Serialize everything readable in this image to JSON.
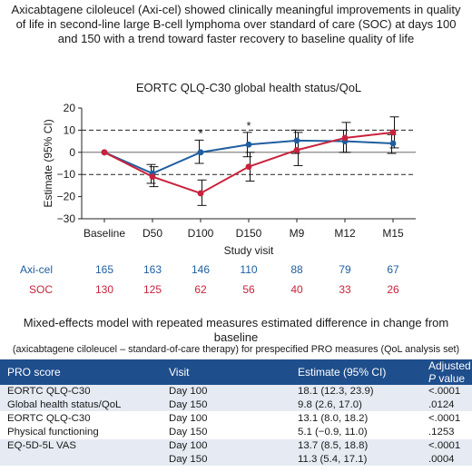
{
  "headline": "Axicabtagene ciloleucel (Axi-cel) showed clinically meaningful improvements in quality of life in second-line large B-cell lymphoma over standard of care (SOC) at days 100 and 150 with a trend toward faster recovery to baseline quality of life",
  "chart_data": {
    "type": "line",
    "title": "EORTC QLQ-C30 global health status/QoL",
    "xlabel": "Study visit",
    "ylabel": "Estimate (95% CI)",
    "categories": [
      "Baseline",
      "D50",
      "D100",
      "D150",
      "M9",
      "M12",
      "M15"
    ],
    "ylim": [
      -30,
      20
    ],
    "yticks": [
      "20",
      "10",
      "0",
      "−10",
      "−20",
      "−30"
    ],
    "yticks_values": [
      20,
      10,
      0,
      -10,
      -20,
      -30
    ],
    "reference_lines": [
      10,
      -10
    ],
    "significance_marker": "*",
    "significant_visits": [
      "D100",
      "D150"
    ],
    "series": [
      {
        "name": "Axi-cel",
        "color": "#1f5fa0",
        "values": [
          0,
          -9.5,
          0,
          3.5,
          5.3,
          5,
          4
        ],
        "ci_low": [
          0,
          -14,
          -5,
          -2,
          -0.5,
          0,
          -0.5
        ],
        "ci_high": [
          0,
          -5.5,
          5.5,
          9,
          10,
          10,
          8
        ]
      },
      {
        "name": "SOC",
        "color": "#c8233c",
        "values": [
          0,
          -11,
          -18.5,
          -6.5,
          1,
          6.5,
          9
        ],
        "ci_low": [
          0,
          -15.5,
          -24,
          -13,
          -6,
          0,
          2
        ],
        "ci_high": [
          0,
          -6.5,
          -12.5,
          0,
          9,
          13.5,
          16
        ]
      }
    ]
  },
  "n_table": {
    "rows": [
      {
        "label": "Axi-cel",
        "color": "#1f5fa0",
        "values": [
          "165",
          "163",
          "146",
          "110",
          "88",
          "79",
          "67"
        ]
      },
      {
        "label": "SOC",
        "color": "#c8233c",
        "values": [
          "130",
          "125",
          "62",
          "56",
          "40",
          "33",
          "26"
        ]
      }
    ]
  },
  "table_section": {
    "title": "Mixed-effects model with repeated measures estimated difference in change from baseline",
    "subtitle": "(axicabtagene ciloleucel – standard-of-care therapy) for prespecified PRO measures (QoL analysis set)",
    "header": {
      "col1": "PRO score",
      "col2": "Visit",
      "col3": "Estimate (95% CI)",
      "col4_prefix": "Adjusted ",
      "col4_italic": "P",
      "col4_suffix": " value"
    },
    "rows": [
      {
        "score": "EORTC QLQ-C30",
        "visit": "Day 100",
        "estimate": "18.1 (12.3, 23.9)",
        "p": "<.0001"
      },
      {
        "score": "Global health status/QoL",
        "visit": "Day 150",
        "estimate": "9.8 (2.6, 17.0)",
        "p": ".0124"
      },
      {
        "score": "EORTC QLQ-C30",
        "visit": "Day 100",
        "estimate": "13.1 (8.0, 18.2)",
        "p": "<.0001"
      },
      {
        "score": "Physical functioning",
        "visit": "Day 150",
        "estimate": "5.1 (−0.9, 11.0)",
        "p": ".1253"
      },
      {
        "score": "EQ-5D-5L VAS",
        "visit": "Day 100",
        "estimate": "13.7 (8.5, 18.8)",
        "p": "<.0001"
      },
      {
        "score": "",
        "visit": "Day 150",
        "estimate": "11.3 (5.4, 17.1)",
        "p": ".0004"
      }
    ]
  }
}
